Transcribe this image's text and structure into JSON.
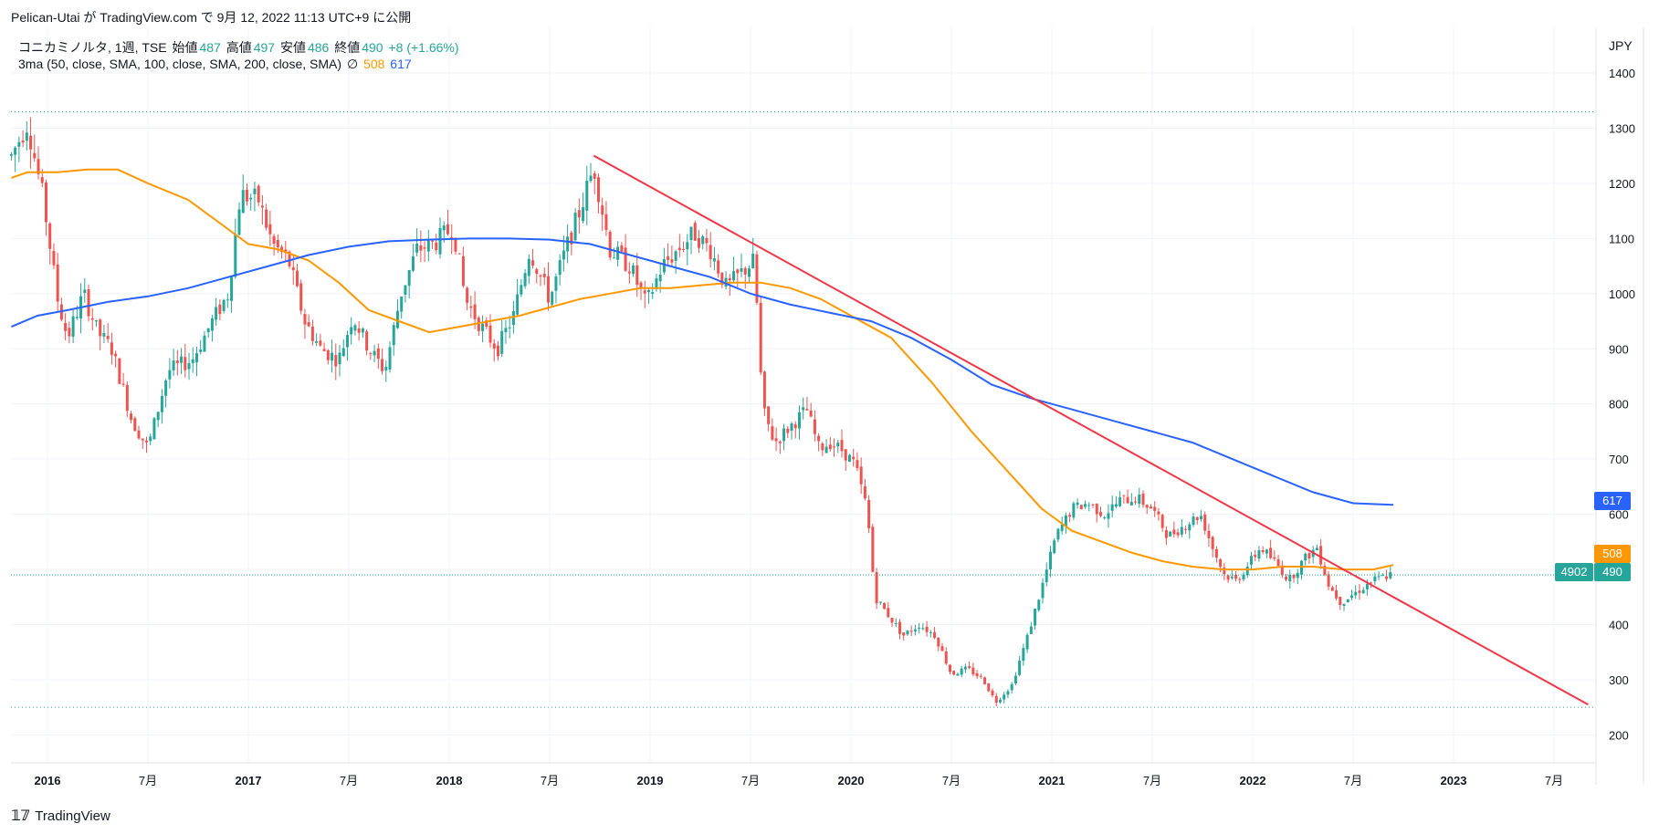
{
  "header": {
    "text": "Pelican-Utai が TradingView.com で 9月 12, 2022 11:13 UTC+9 に公開"
  },
  "legend": {
    "symbol": "コニカミノルタ, 1週, TSE",
    "open_label": "始値",
    "open": "487",
    "high_label": "高値",
    "high": "497",
    "low_label": "安値",
    "low": "486",
    "close_label": "終値",
    "close": "490",
    "change": "+8 (+1.66%)",
    "indicator": "3ma (50, close, SMA, 100, close, SMA, 200, close, SMA)",
    "ma_hidden_icon": "∅",
    "ma100_value": "508",
    "ma200_value": "617"
  },
  "axis": {
    "currency": "JPY"
  },
  "price_labels": {
    "countdown": "4902",
    "last": "490",
    "ma100": "508",
    "ma200": "617"
  },
  "footer": {
    "brand": "TradingView",
    "logo_icon": "tradingview-logo-icon"
  },
  "colors": {
    "up": "#26a69a",
    "down": "#ef5350",
    "ma100": "#ff9800",
    "ma200": "#2962ff",
    "trendline": "#f23645"
  },
  "chart_data": {
    "type": "candlestick",
    "interval": "1週",
    "ylim": [
      180,
      1420
    ],
    "y_ticks": [
      200,
      300,
      400,
      500,
      600,
      700,
      800,
      900,
      1000,
      1100,
      1200,
      1300,
      1400
    ],
    "x_ticks": [
      {
        "label": "2016",
        "date": 2016.0,
        "bold": true
      },
      {
        "label": "7月",
        "date": 2016.5
      },
      {
        "label": "2017",
        "date": 2017.0,
        "bold": true
      },
      {
        "label": "7月",
        "date": 2017.5
      },
      {
        "label": "2018",
        "date": 2018.0,
        "bold": true
      },
      {
        "label": "7月",
        "date": 2018.5
      },
      {
        "label": "2019",
        "date": 2019.0,
        "bold": true
      },
      {
        "label": "7月",
        "date": 2019.5
      },
      {
        "label": "2020",
        "date": 2020.0,
        "bold": true
      },
      {
        "label": "7月",
        "date": 2020.5
      },
      {
        "label": "2021",
        "date": 2021.0,
        "bold": true
      },
      {
        "label": "7月",
        "date": 2021.5
      },
      {
        "label": "2022",
        "date": 2022.0,
        "bold": true
      },
      {
        "label": "7月",
        "date": 2022.5
      },
      {
        "label": "2023",
        "date": 2023.0,
        "bold": true
      },
      {
        "label": "7月",
        "date": 2023.5
      }
    ],
    "grid": true,
    "horizontal_levels": [
      1330,
      250
    ],
    "price_anchors": [
      [
        2015.82,
        1250
      ],
      [
        2015.9,
        1310
      ],
      [
        2015.98,
        1170
      ],
      [
        2016.05,
        990
      ],
      [
        2016.1,
        920
      ],
      [
        2016.18,
        1000
      ],
      [
        2016.25,
        930
      ],
      [
        2016.32,
        900
      ],
      [
        2016.42,
        770
      ],
      [
        2016.5,
        720
      ],
      [
        2016.6,
        860
      ],
      [
        2016.72,
        880
      ],
      [
        2016.82,
        950
      ],
      [
        2016.9,
        1000
      ],
      [
        2016.96,
        1180
      ],
      [
        2017.05,
        1170
      ],
      [
        2017.12,
        1090
      ],
      [
        2017.2,
        1060
      ],
      [
        2017.28,
        950
      ],
      [
        2017.36,
        900
      ],
      [
        2017.45,
        880
      ],
      [
        2017.52,
        960
      ],
      [
        2017.6,
        900
      ],
      [
        2017.68,
        860
      ],
      [
        2017.76,
        1000
      ],
      [
        2017.84,
        1080
      ],
      [
        2017.92,
        1090
      ],
      [
        2018.02,
        1120
      ],
      [
        2018.08,
        990
      ],
      [
        2018.16,
        940
      ],
      [
        2018.24,
        900
      ],
      [
        2018.32,
        960
      ],
      [
        2018.4,
        1080
      ],
      [
        2018.5,
        990
      ],
      [
        2018.58,
        1080
      ],
      [
        2018.65,
        1150
      ],
      [
        2018.72,
        1230
      ],
      [
        2018.8,
        1080
      ],
      [
        2018.9,
        1050
      ],
      [
        2018.98,
        980
      ],
      [
        2019.06,
        1050
      ],
      [
        2019.14,
        1080
      ],
      [
        2019.22,
        1110
      ],
      [
        2019.3,
        1080
      ],
      [
        2019.38,
        1010
      ],
      [
        2019.46,
        1040
      ],
      [
        2019.52,
        1060
      ],
      [
        2019.56,
        790
      ],
      [
        2019.62,
        730
      ],
      [
        2019.7,
        760
      ],
      [
        2019.78,
        790
      ],
      [
        2019.84,
        720
      ],
      [
        2019.9,
        730
      ],
      [
        2019.96,
        715
      ],
      [
        2020.02,
        690
      ],
      [
        2020.08,
        610
      ],
      [
        2020.12,
        450
      ],
      [
        2020.18,
        420
      ],
      [
        2020.26,
        380
      ],
      [
        2020.34,
        400
      ],
      [
        2020.42,
        380
      ],
      [
        2020.5,
        310
      ],
      [
        2020.58,
        320
      ],
      [
        2020.66,
        300
      ],
      [
        2020.72,
        260
      ],
      [
        2020.8,
        290
      ],
      [
        2020.88,
        380
      ],
      [
        2020.96,
        480
      ],
      [
        2021.02,
        560
      ],
      [
        2021.1,
        610
      ],
      [
        2021.18,
        620
      ],
      [
        2021.26,
        600
      ],
      [
        2021.34,
        625
      ],
      [
        2021.42,
        630
      ],
      [
        2021.5,
        610
      ],
      [
        2021.58,
        560
      ],
      [
        2021.66,
        580
      ],
      [
        2021.74,
        600
      ],
      [
        2021.8,
        540
      ],
      [
        2021.86,
        490
      ],
      [
        2021.92,
        480
      ],
      [
        2021.98,
        510
      ],
      [
        2022.04,
        540
      ],
      [
        2022.12,
        510
      ],
      [
        2022.18,
        480
      ],
      [
        2022.26,
        520
      ],
      [
        2022.32,
        540
      ],
      [
        2022.38,
        470
      ],
      [
        2022.44,
        440
      ],
      [
        2022.52,
        460
      ],
      [
        2022.6,
        480
      ],
      [
        2022.68,
        490
      ],
      [
        2022.7,
        490
      ]
    ],
    "series": [
      {
        "key": "ma100",
        "points": [
          [
            2015.82,
            1210
          ],
          [
            2015.9,
            1220
          ],
          [
            2016.05,
            1220
          ],
          [
            2016.2,
            1225
          ],
          [
            2016.35,
            1225
          ],
          [
            2016.5,
            1200
          ],
          [
            2016.7,
            1170
          ],
          [
            2016.85,
            1130
          ],
          [
            2017.0,
            1090
          ],
          [
            2017.15,
            1080
          ],
          [
            2017.3,
            1060
          ],
          [
            2017.45,
            1020
          ],
          [
            2017.6,
            970
          ],
          [
            2017.75,
            950
          ],
          [
            2017.9,
            930
          ],
          [
            2018.05,
            940
          ],
          [
            2018.2,
            950
          ],
          [
            2018.35,
            960
          ],
          [
            2018.5,
            975
          ],
          [
            2018.65,
            990
          ],
          [
            2018.8,
            1000
          ],
          [
            2018.95,
            1010
          ],
          [
            2019.1,
            1010
          ],
          [
            2019.25,
            1015
          ],
          [
            2019.4,
            1020
          ],
          [
            2019.55,
            1020
          ],
          [
            2019.7,
            1010
          ],
          [
            2019.85,
            990
          ],
          [
            2020.0,
            960
          ],
          [
            2020.2,
            920
          ],
          [
            2020.4,
            840
          ],
          [
            2020.6,
            750
          ],
          [
            2020.8,
            670
          ],
          [
            2020.95,
            610
          ],
          [
            2021.1,
            570
          ],
          [
            2021.25,
            550
          ],
          [
            2021.4,
            530
          ],
          [
            2021.55,
            515
          ],
          [
            2021.7,
            505
          ],
          [
            2021.85,
            500
          ],
          [
            2022.0,
            500
          ],
          [
            2022.15,
            505
          ],
          [
            2022.3,
            505
          ],
          [
            2022.45,
            500
          ],
          [
            2022.6,
            500
          ],
          [
            2022.7,
            508
          ]
        ]
      },
      {
        "key": "ma200",
        "points": [
          [
            2015.82,
            940
          ],
          [
            2015.95,
            960
          ],
          [
            2016.1,
            970
          ],
          [
            2016.3,
            985
          ],
          [
            2016.5,
            995
          ],
          [
            2016.7,
            1010
          ],
          [
            2016.9,
            1030
          ],
          [
            2017.1,
            1050
          ],
          [
            2017.3,
            1070
          ],
          [
            2017.5,
            1085
          ],
          [
            2017.7,
            1095
          ],
          [
            2017.9,
            1098
          ],
          [
            2018.1,
            1100
          ],
          [
            2018.3,
            1100
          ],
          [
            2018.5,
            1098
          ],
          [
            2018.7,
            1090
          ],
          [
            2018.9,
            1070
          ],
          [
            2019.1,
            1050
          ],
          [
            2019.3,
            1030
          ],
          [
            2019.5,
            1000
          ],
          [
            2019.7,
            980
          ],
          [
            2019.9,
            965
          ],
          [
            2020.1,
            950
          ],
          [
            2020.3,
            920
          ],
          [
            2020.5,
            880
          ],
          [
            2020.7,
            835
          ],
          [
            2020.9,
            810
          ],
          [
            2021.1,
            790
          ],
          [
            2021.3,
            770
          ],
          [
            2021.5,
            750
          ],
          [
            2021.7,
            730
          ],
          [
            2021.9,
            700
          ],
          [
            2022.1,
            670
          ],
          [
            2022.3,
            640
          ],
          [
            2022.5,
            620
          ],
          [
            2022.7,
            617
          ]
        ]
      }
    ],
    "trendline": {
      "from": [
        2018.72,
        1250
      ],
      "to": [
        2023.67,
        255
      ]
    }
  }
}
